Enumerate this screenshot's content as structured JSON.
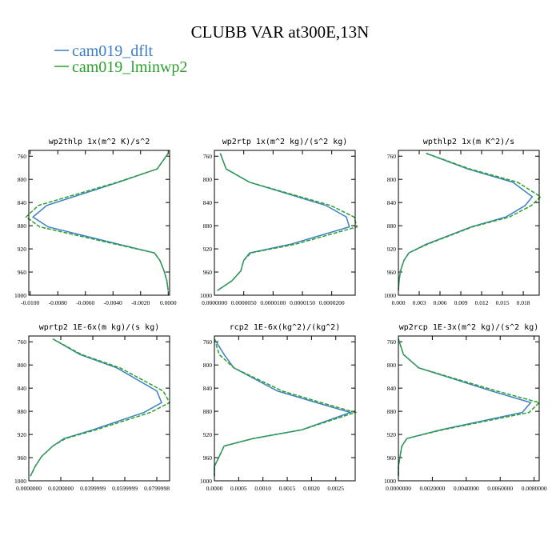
{
  "title": "CLUBB VAR at300E,13N",
  "chart_data": [
    {
      "type": "line",
      "title": "wp2thlp   1x(m^2 K)/s^2",
      "levels": [
        755,
        782,
        805,
        845,
        865,
        882,
        912,
        927,
        940,
        958,
        975,
        992
      ],
      "series": [
        {
          "name": "cam019_dflt",
          "color": "#3b7fc4",
          "dash": false,
          "values": [
            0,
            -0.0008,
            -0.0036,
            -0.0088,
            -0.0098,
            -0.0087,
            -0.0036,
            -0.001,
            -0.0006,
            -0.0003,
            -0.0001,
            0
          ]
        },
        {
          "name": "cam019_lminwp2",
          "color": "#2ca02c",
          "dash": true,
          "values": [
            0,
            -0.0008,
            -0.0037,
            -0.0094,
            -0.0103,
            -0.0093,
            -0.0038,
            -0.001,
            -0.0006,
            -0.0003,
            -0.0001,
            0
          ]
        }
      ],
      "xlim": [
        -0.0101,
        0.0001
      ],
      "ylim": [
        1000,
        750
      ],
      "xticks": [
        {
          "value": -0.01,
          "label": "-0.0100"
        },
        {
          "value": -0.008,
          "label": "-0.0080"
        },
        {
          "value": -0.006,
          "label": "-0.0060"
        },
        {
          "value": -0.004,
          "label": "-0.0040"
        },
        {
          "value": -0.002,
          "label": "-0.0020"
        },
        {
          "value": 0,
          "label": "0.0000"
        }
      ],
      "yticks": [
        760,
        800,
        840,
        880,
        920,
        960,
        1000
      ]
    },
    {
      "type": "line",
      "title": "wp2rtp   1x(m^2 kg)/(s^2 kg)",
      "levels": [
        755,
        782,
        805,
        845,
        865,
        882,
        912,
        927,
        940,
        958,
        975,
        992
      ],
      "series": [
        {
          "name": "cam019_dflt",
          "color": "#3b7fc4",
          "dash": false,
          "values": [
            1e-06,
            2e-06,
            6e-06,
            1.9e-05,
            2.25e-05,
            2.3e-05,
            1.3e-05,
            6e-06,
            5e-06,
            4.5e-06,
            3e-06,
            5e-07
          ]
        },
        {
          "name": "cam019_lminwp2",
          "color": "#2ca02c",
          "dash": true,
          "values": [
            1e-06,
            2e-06,
            6e-06,
            1.98e-05,
            2.38e-05,
            2.43e-05,
            1.38e-05,
            6.2e-06,
            5e-06,
            4.5e-06,
            3e-06,
            5e-07
          ]
        }
      ],
      "xlim": [
        0,
        2.4e-05
      ],
      "ylim": [
        1000,
        750
      ],
      "xticks": [
        {
          "value": 0,
          "label": "0.0000000"
        },
        {
          "value": 5e-06,
          "label": "0.0000050"
        },
        {
          "value": 1e-05,
          "label": "0.0000100"
        },
        {
          "value": 1.5e-05,
          "label": "0.0000150"
        },
        {
          "value": 2e-05,
          "label": "0.0000200"
        }
      ],
      "yticks": [
        760,
        800,
        840,
        880,
        920,
        960,
        1000
      ]
    },
    {
      "type": "line",
      "title": "wpthlp2   1x(m K^2)/s",
      "levels": [
        755,
        782,
        805,
        830,
        845,
        865,
        882,
        912,
        927,
        940,
        958,
        975,
        992
      ],
      "series": [
        {
          "name": "cam019_dflt",
          "color": "#3b7fc4",
          "dash": false,
          "values": [
            0.004,
            0.01,
            0.0165,
            0.0193,
            0.0183,
            0.0155,
            0.0105,
            0.004,
            0.0015,
            0.0008,
            0.0003,
            0.0001,
            0
          ]
        },
        {
          "name": "cam019_lminwp2",
          "color": "#2ca02c",
          "dash": true,
          "values": [
            0.004,
            0.0103,
            0.0172,
            0.0205,
            0.0192,
            0.016,
            0.0107,
            0.0042,
            0.0015,
            0.0008,
            0.0003,
            0.0001,
            0
          ]
        }
      ],
      "xlim": [
        0,
        0.0203
      ],
      "ylim": [
        1000,
        750
      ],
      "xticks": [
        {
          "value": 0,
          "label": "0.000"
        },
        {
          "value": 0.003,
          "label": "0.003"
        },
        {
          "value": 0.006,
          "label": "0.006"
        },
        {
          "value": 0.009,
          "label": "0.009"
        },
        {
          "value": 0.012,
          "label": "0.012"
        },
        {
          "value": 0.015,
          "label": "0.015"
        },
        {
          "value": 0.018,
          "label": "0.018"
        }
      ],
      "yticks": [
        760,
        800,
        840,
        880,
        920,
        960,
        1000
      ]
    },
    {
      "type": "line",
      "title": "wprtp2   1E-6x(m kg)/(s kg)",
      "levels": [
        755,
        782,
        805,
        845,
        865,
        882,
        912,
        927,
        940,
        958,
        975,
        992
      ],
      "series": [
        {
          "name": "cam019_dflt",
          "color": "#3b7fc4",
          "dash": false,
          "values": [
            0.015,
            0.032,
            0.055,
            0.08,
            0.083,
            0.072,
            0.04,
            0.022,
            0.015,
            0.008,
            0.004,
            0.001
          ]
        },
        {
          "name": "cam019_lminwp2",
          "color": "#2ca02c",
          "dash": true,
          "values": [
            0.015,
            0.033,
            0.057,
            0.084,
            0.088,
            0.076,
            0.042,
            0.023,
            0.015,
            0.008,
            0.004,
            0.001
          ]
        }
      ],
      "xlim": [
        0,
        0.088
      ],
      "ylim": [
        1000,
        750
      ],
      "xticks": [
        {
          "value": 0,
          "label": "0.0000000"
        },
        {
          "value": 0.02,
          "label": "0.0200000"
        },
        {
          "value": 0.04,
          "label": "0.0399999"
        },
        {
          "value": 0.06,
          "label": "0.0599999"
        },
        {
          "value": 0.08,
          "label": "0.0799998"
        }
      ],
      "yticks": [
        760,
        800,
        840,
        880,
        920,
        960,
        1000
      ]
    },
    {
      "type": "line",
      "title": "rcp2   1E-6x(kg^2)/(kg^2)",
      "levels": [
        755,
        782,
        805,
        845,
        865,
        882,
        912,
        927,
        940,
        958,
        975,
        992
      ],
      "series": [
        {
          "name": "cam019_dflt",
          "color": "#3b7fc4",
          "dash": false,
          "values": [
            0,
            0.0002,
            0.0004,
            0.0013,
            0.0021,
            0.0028,
            0.0018,
            0.0008,
            0.0002,
            0.0001,
            0,
            0
          ]
        },
        {
          "name": "cam019_lminwp2",
          "color": "#2ca02c",
          "dash": true,
          "values": [
            0,
            0.0001,
            0.0004,
            0.0014,
            0.0022,
            0.0029,
            0.0018,
            0.0008,
            0.0002,
            0.0001,
            0,
            0
          ]
        }
      ],
      "xlim": [
        0,
        0.0029
      ],
      "ylim": [
        1000,
        750
      ],
      "xticks": [
        {
          "value": 0,
          "label": "0.0000"
        },
        {
          "value": 0.0005,
          "label": "0.0005"
        },
        {
          "value": 0.001,
          "label": "0.0010"
        },
        {
          "value": 0.0015,
          "label": "0.0015"
        },
        {
          "value": 0.002,
          "label": "0.0020"
        },
        {
          "value": 0.0025,
          "label": "0.0025"
        }
      ],
      "yticks": [
        760,
        800,
        840,
        880,
        920,
        960,
        1000
      ]
    },
    {
      "type": "line",
      "title": "wp2rcp   1E-3x(m^2 kg)/(s^2 kg)",
      "levels": [
        755,
        782,
        805,
        845,
        865,
        882,
        912,
        927,
        940,
        958,
        975,
        992
      ],
      "series": [
        {
          "name": "cam019_dflt",
          "color": "#3b7fc4",
          "dash": false,
          "values": [
            0,
            0.0003,
            0.0012,
            0.0055,
            0.0078,
            0.0073,
            0.0025,
            0.0005,
            0.0002,
            0.0001,
            0,
            0
          ]
        },
        {
          "name": "cam019_lminwp2",
          "color": "#2ca02c",
          "dash": true,
          "values": [
            0,
            0.0003,
            0.0012,
            0.0058,
            0.0083,
            0.0077,
            0.0026,
            0.0005,
            0.0002,
            0.0001,
            0,
            0
          ]
        }
      ],
      "xlim": [
        0,
        0.0083
      ],
      "ylim": [
        1000,
        750
      ],
      "xticks": [
        {
          "value": 0,
          "label": "0.0000000"
        },
        {
          "value": 0.002,
          "label": "0.0020000"
        },
        {
          "value": 0.004,
          "label": "0.0040000"
        },
        {
          "value": 0.006,
          "label": "0.0060000"
        },
        {
          "value": 0.008,
          "label": "0.0080000"
        }
      ],
      "yticks": [
        760,
        800,
        840,
        880,
        920,
        960,
        1000
      ]
    }
  ]
}
